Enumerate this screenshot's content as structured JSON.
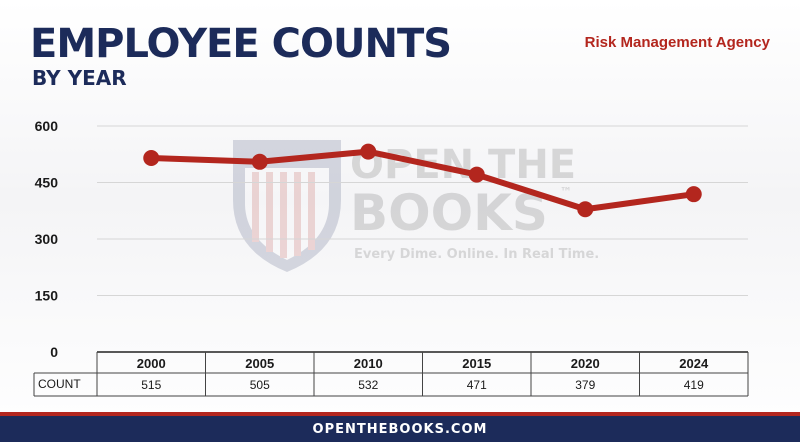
{
  "header": {
    "title": "EMPLOYEE COUNTS",
    "subtitle": "BY YEAR",
    "agency": "Risk Management Agency"
  },
  "watermark": {
    "line1": "OPEN THE",
    "line2": "BOOKS",
    "tagline": "Every Dime. Online. In Real Time.",
    "tm": "™"
  },
  "table": {
    "row_label": "COUNT"
  },
  "footer": {
    "text": "OPENTHEBOOKS.COM"
  },
  "colors": {
    "navy": "#1c2b5a",
    "red": "#b3261e"
  },
  "chart_data": {
    "type": "line",
    "title": "EMPLOYEE COUNTS",
    "subtitle": "BY YEAR",
    "categories": [
      "2000",
      "2005",
      "2010",
      "2015",
      "2020",
      "2024"
    ],
    "values": [
      515,
      505,
      532,
      471,
      379,
      419
    ],
    "value_labels": [
      "515",
      "505",
      "532",
      "471",
      "379",
      "419"
    ],
    "ylim": [
      0,
      600
    ],
    "yticks": [
      0,
      150,
      300,
      450,
      600
    ],
    "ytick_labels": [
      "0",
      "150",
      "300",
      "450",
      "600"
    ],
    "grid": true,
    "legend": "none",
    "line_color": "#b3261e"
  }
}
